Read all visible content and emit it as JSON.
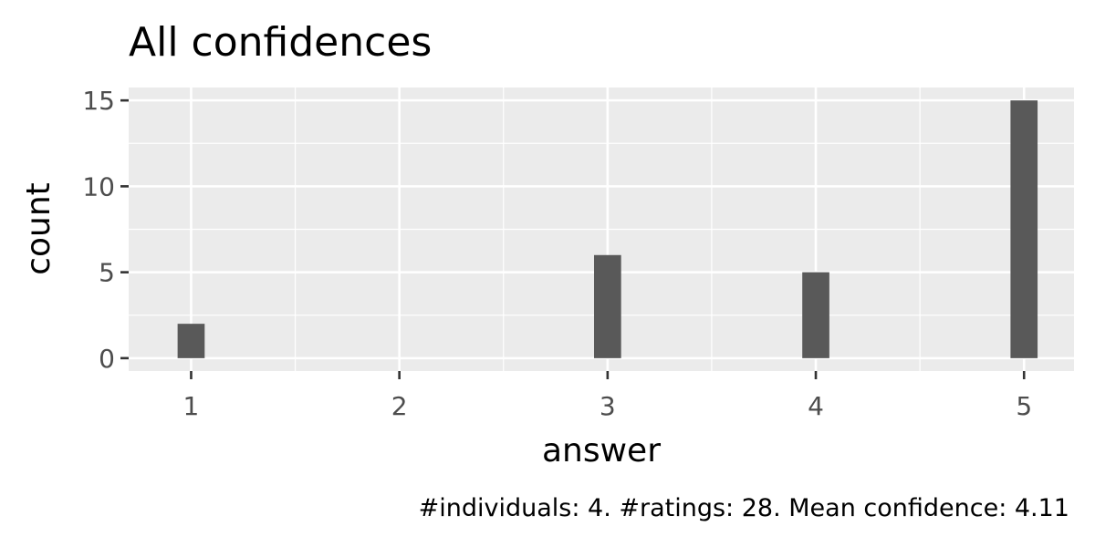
{
  "colors": {
    "panel_background": "#EBEBEB",
    "grid_line": "#FFFFFF",
    "bar_fill": "#595959",
    "tick_mark": "#333333",
    "tick_label": "#4D4D4D"
  },
  "chart_data": {
    "type": "bar",
    "title": "All confidences",
    "xlabel": "answer",
    "ylabel": "count",
    "caption": "#individuals: 4. #ratings: 28. Mean confidence: 4.11",
    "x": [
      1,
      3,
      4,
      5
    ],
    "values": [
      2,
      6,
      5,
      15
    ],
    "x_ticks": [
      1,
      2,
      3,
      4,
      5
    ],
    "y_ticks": [
      0,
      5,
      10,
      15
    ],
    "xlim": [
      0.7,
      5.24
    ],
    "ylim": [
      -0.75,
      15.75
    ],
    "bar_width": 0.13,
    "grid": true,
    "legend": "none"
  }
}
